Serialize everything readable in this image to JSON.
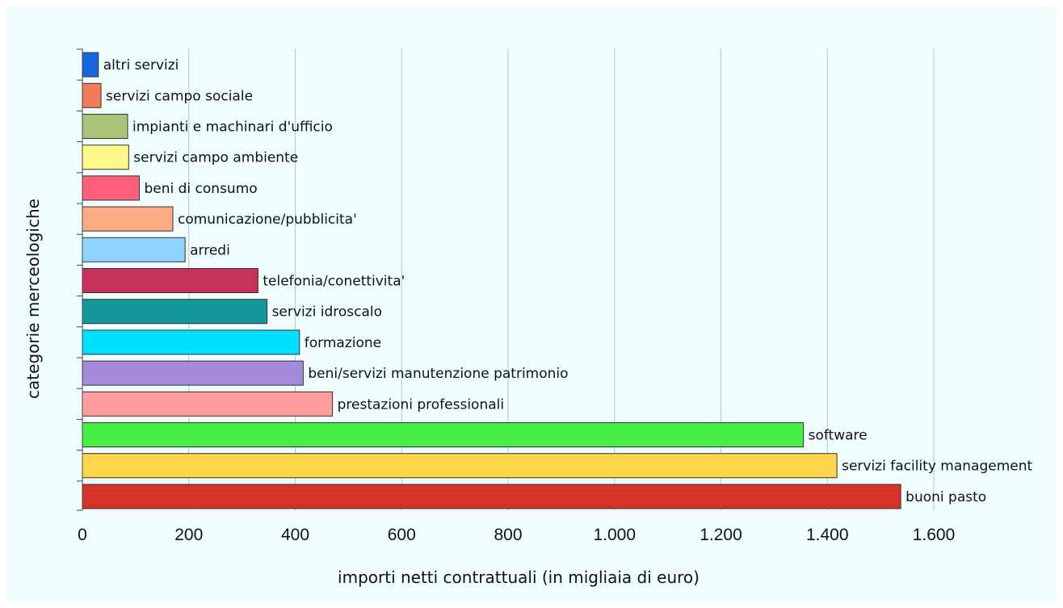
{
  "chart_data": {
    "type": "bar",
    "orientation": "horizontal",
    "title": "",
    "xlabel": "importi netti contrattuali (in migliaia di euro)",
    "ylabel": "categorie merceologiche",
    "xlim": [
      0,
      1600
    ],
    "xticks": [
      0,
      200,
      400,
      600,
      800,
      1000,
      1200,
      1400,
      1600
    ],
    "xtick_labels": [
      "0",
      "200",
      "400",
      "600",
      "800",
      "1.000",
      "1.200",
      "1.400",
      "1.600"
    ],
    "grid": "vertical",
    "legend": "none",
    "categories": [
      "altri servizi",
      "servizi campo sociale",
      "impianti e machinari d'ufficio",
      "servizi campo ambiente",
      "beni di consumo",
      "comunicazione/pubblicita'",
      "arredi",
      "telefonia/conettivita'",
      "servizi idroscalo",
      "formazione",
      "beni/servizi manutenzione patrimonio",
      "prestazioni professionali",
      "software",
      "servizi facility management",
      "buoni pasto"
    ],
    "values": [
      30,
      35,
      85,
      87,
      107,
      170,
      193,
      330,
      347,
      408,
      415,
      470,
      1355,
      1418,
      1538
    ],
    "colors": [
      "#1565e0",
      "#f07c5a",
      "#a9c477",
      "#fff88a",
      "#ff5f7a",
      "#ffab85",
      "#8fd3ff",
      "#c8315b",
      "#14999a",
      "#00dfff",
      "#a58ad9",
      "#ff9c9c",
      "#44f044",
      "#ffd64a",
      "#d63226"
    ]
  },
  "style": {
    "page_background": "#ffffff",
    "chart_background": "#f0feff",
    "gridline_color": "#b9c4c9",
    "axis_color": "#444444",
    "bar_border": "#333333"
  }
}
